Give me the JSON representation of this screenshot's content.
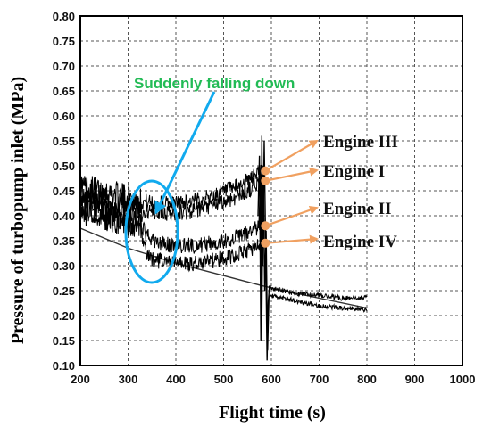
{
  "chart_data": {
    "type": "line",
    "title": "",
    "xlabel": "Flight time (s)",
    "ylabel": "Pressure of turbopump inlet  (MPa)",
    "xlim": [
      200,
      1000
    ],
    "ylim": [
      0.1,
      0.8
    ],
    "x_ticks": [
      "200",
      "300",
      "400",
      "500",
      "600",
      "700",
      "800",
      "900",
      "1000"
    ],
    "y_ticks": [
      "0.10",
      "0.15",
      "0.20",
      "0.25",
      "0.30",
      "0.35",
      "0.40",
      "0.45",
      "0.50",
      "0.55",
      "0.60",
      "0.65",
      "0.70",
      "0.75",
      "0.80"
    ],
    "grid": true,
    "series": [
      {
        "name": "Engine III",
        "x": [
          200,
          240,
          280,
          320,
          360,
          400,
          440,
          480,
          520,
          550,
          570,
          580
        ],
        "y": [
          0.46,
          0.45,
          0.44,
          0.43,
          0.425,
          0.425,
          0.43,
          0.44,
          0.455,
          0.47,
          0.485,
          0.49
        ]
      },
      {
        "name": "Engine I",
        "x": [
          200,
          240,
          280,
          320,
          360,
          400,
          440,
          480,
          520,
          550,
          570,
          580
        ],
        "y": [
          0.44,
          0.43,
          0.42,
          0.41,
          0.405,
          0.405,
          0.41,
          0.42,
          0.435,
          0.45,
          0.465,
          0.47
        ]
      },
      {
        "name": "Engine II",
        "x": [
          200,
          240,
          280,
          320,
          340,
          360,
          400,
          440,
          480,
          520,
          550,
          570,
          580
        ],
        "y": [
          0.42,
          0.41,
          0.4,
          0.39,
          0.36,
          0.345,
          0.34,
          0.34,
          0.345,
          0.355,
          0.365,
          0.375,
          0.38
        ]
      },
      {
        "name": "Engine IV",
        "x": [
          200,
          240,
          280,
          320,
          340,
          360,
          400,
          440,
          480,
          520,
          550,
          570,
          580
        ],
        "y": [
          0.41,
          0.4,
          0.39,
          0.38,
          0.32,
          0.31,
          0.305,
          0.305,
          0.31,
          0.32,
          0.33,
          0.34,
          0.345
        ]
      }
    ],
    "after_shutdown": {
      "x": [
        595,
        650,
        700,
        750,
        800
      ],
      "y_upper": [
        0.255,
        0.245,
        0.24,
        0.235,
        0.235
      ],
      "y_lower": [
        0.24,
        0.23,
        0.22,
        0.215,
        0.212
      ]
    },
    "reference_line": {
      "x": [
        200,
        300,
        400,
        500,
        580,
        650,
        800
      ],
      "y": [
        0.375,
        0.335,
        0.305,
        0.28,
        0.26,
        0.245,
        0.215
      ]
    },
    "annotations": {
      "falling_text": "Suddenly falling down",
      "colors": {
        "falling": "#22bb55",
        "ellipse": "#11aaee",
        "engine_arrows": "#f0a060"
      }
    }
  }
}
